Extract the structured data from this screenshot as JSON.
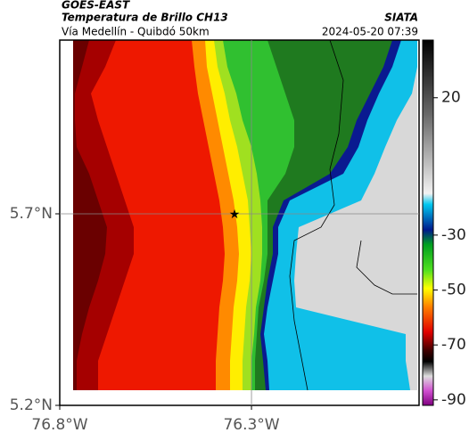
{
  "header": {
    "source": "GOES-EAST",
    "product": "Temperatura de Brillo CH13",
    "region": "Vía Medellín - Quibdó 50km",
    "org": "SIATA",
    "timestamp": "2024-05-20 07:39"
  },
  "axes": {
    "xlim": [
      -76.8,
      -75.863
    ],
    "ylim": [
      5.2,
      6.1535
    ],
    "xticks": [
      {
        "value": -76.8,
        "label": "76.8°W"
      },
      {
        "value": -76.3,
        "label": "76.3°W"
      }
    ],
    "yticks": [
      {
        "value": 5.7,
        "label": "5.7°N"
      },
      {
        "value": 5.2,
        "label": "5.2°N"
      }
    ]
  },
  "colorbar": {
    "range": [
      -92,
      41
    ],
    "ticks": [
      20,
      -30,
      -50,
      -70,
      -90
    ]
  }
}
